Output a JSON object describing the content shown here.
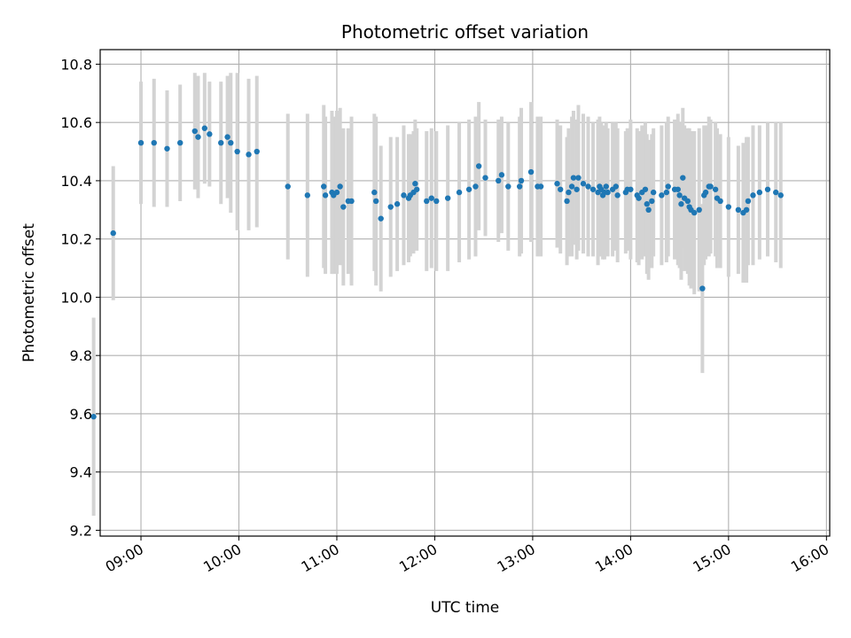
{
  "chart_data": {
    "type": "scatter",
    "title": "Photometric offset variation",
    "xlabel": "UTC time",
    "ylabel": "Photometric offset",
    "xlim": [
      "08:35",
      "16:02"
    ],
    "ylim": [
      9.18,
      10.85
    ],
    "x_ticks": [
      "09:00",
      "10:00",
      "11:00",
      "12:00",
      "13:00",
      "14:00",
      "15:00",
      "16:00"
    ],
    "y_ticks": [
      9.2,
      9.4,
      9.6,
      9.8,
      10.0,
      10.2,
      10.4,
      10.6,
      10.8
    ],
    "grid": true,
    "colors": {
      "point": "#1f77b4",
      "errorbar": "#d3d3d3",
      "grid": "#b0b0b0"
    },
    "series": [
      {
        "x": [
          "08:31",
          "08:43",
          "09:00",
          "09:08",
          "09:16",
          "09:24",
          "09:33",
          "09:35",
          "09:39",
          "09:42",
          "09:49",
          "09:53",
          "09:55",
          "09:59",
          "10:06",
          "10:11",
          "10:30",
          "10:42",
          "10:52",
          "10:53",
          "10:57",
          "10:58",
          "11:00",
          "11:02",
          "11:04",
          "11:07",
          "11:09",
          "11:23",
          "11:24",
          "11:27",
          "11:33",
          "11:37",
          "11:41",
          "11:44",
          "11:45",
          "11:47",
          "11:48",
          "11:49",
          "11:55",
          "11:58",
          "12:01",
          "12:08",
          "12:15",
          "12:21",
          "12:25",
          "12:27",
          "12:31",
          "12:39",
          "12:41",
          "12:45",
          "12:52",
          "12:53",
          "12:59",
          "13:03",
          "13:05",
          "13:15",
          "13:17",
          "13:21",
          "13:22",
          "13:24",
          "13:25",
          "13:27",
          "13:28",
          "13:31",
          "13:34",
          "13:37",
          "13:40",
          "13:41",
          "13:42",
          "13:43",
          "13:44",
          "13:45",
          "13:46",
          "13:49",
          "13:51",
          "13:52",
          "13:57",
          "13:58",
          "14:00",
          "14:04",
          "14:05",
          "14:07",
          "14:09",
          "14:10",
          "14:11",
          "14:13",
          "14:14",
          "14:19",
          "14:22",
          "14:23",
          "14:27",
          "14:29",
          "14:30",
          "14:31",
          "14:32",
          "14:33",
          "14:35",
          "14:36",
          "14:37",
          "14:39",
          "14:42",
          "14:44",
          "14:45",
          "14:46",
          "14:48",
          "14:49",
          "14:52",
          "14:53",
          "14:55",
          "15:00",
          "15:06",
          "15:09",
          "15:11",
          "15:12",
          "15:15",
          "15:19",
          "15:24",
          "15:29",
          "15:32"
        ],
        "y": [
          9.59,
          10.22,
          10.53,
          10.53,
          10.51,
          10.53,
          10.57,
          10.55,
          10.58,
          10.56,
          10.53,
          10.55,
          10.53,
          10.5,
          10.49,
          10.5,
          10.38,
          10.35,
          10.38,
          10.35,
          10.36,
          10.35,
          10.36,
          10.38,
          10.31,
          10.33,
          10.33,
          10.36,
          10.33,
          10.27,
          10.31,
          10.32,
          10.35,
          10.34,
          10.35,
          10.36,
          10.39,
          10.37,
          10.33,
          10.34,
          10.33,
          10.34,
          10.36,
          10.37,
          10.38,
          10.45,
          10.41,
          10.4,
          10.42,
          10.38,
          10.38,
          10.4,
          10.43,
          10.38,
          10.38,
          10.39,
          10.37,
          10.33,
          10.36,
          10.38,
          10.41,
          10.37,
          10.41,
          10.39,
          10.38,
          10.37,
          10.36,
          10.38,
          10.37,
          10.35,
          10.36,
          10.38,
          10.36,
          10.37,
          10.38,
          10.35,
          10.36,
          10.37,
          10.37,
          10.35,
          10.34,
          10.36,
          10.37,
          10.32,
          10.3,
          10.33,
          10.36,
          10.35,
          10.36,
          10.38,
          10.37,
          10.37,
          10.35,
          10.32,
          10.41,
          10.34,
          10.33,
          10.31,
          10.3,
          10.29,
          10.3,
          10.03,
          10.35,
          10.36,
          10.38,
          10.38,
          10.37,
          10.34,
          10.33,
          10.31,
          10.3,
          10.29,
          10.3,
          10.33,
          10.35,
          10.36,
          10.37,
          10.36,
          10.35
        ],
        "yerr": [
          0.34,
          0.23,
          0.21,
          0.22,
          0.2,
          0.2,
          0.2,
          0.21,
          0.19,
          0.18,
          0.21,
          0.21,
          0.24,
          0.27,
          0.26,
          0.26,
          0.25,
          0.28,
          0.28,
          0.27,
          0.28,
          0.27,
          0.28,
          0.27,
          0.27,
          0.25,
          0.29,
          0.27,
          0.29,
          0.25,
          0.24,
          0.23,
          0.24,
          0.22,
          0.21,
          0.21,
          0.22,
          0.21,
          0.24,
          0.24,
          0.24,
          0.25,
          0.24,
          0.24,
          0.24,
          0.22,
          0.2,
          0.21,
          0.2,
          0.22,
          0.24,
          0.25,
          0.24,
          0.24,
          0.24,
          0.22,
          0.22,
          0.22,
          0.22,
          0.24,
          0.23,
          0.24,
          0.25,
          0.24,
          0.24,
          0.23,
          0.25,
          0.24,
          0.23,
          0.22,
          0.23,
          0.22,
          0.22,
          0.23,
          0.22,
          0.23,
          0.21,
          0.21,
          0.24,
          0.23,
          0.23,
          0.23,
          0.23,
          0.24,
          0.24,
          0.23,
          0.22,
          0.24,
          0.24,
          0.24,
          0.24,
          0.26,
          0.25,
          0.26,
          0.24,
          0.25,
          0.25,
          0.27,
          0.27,
          0.28,
          0.28,
          0.29,
          0.24,
          0.23,
          0.24,
          0.23,
          0.23,
          0.24,
          0.23,
          0.24,
          0.22,
          0.24,
          0.25,
          0.22,
          0.24,
          0.23,
          0.23,
          0.24,
          0.25
        ]
      }
    ]
  }
}
